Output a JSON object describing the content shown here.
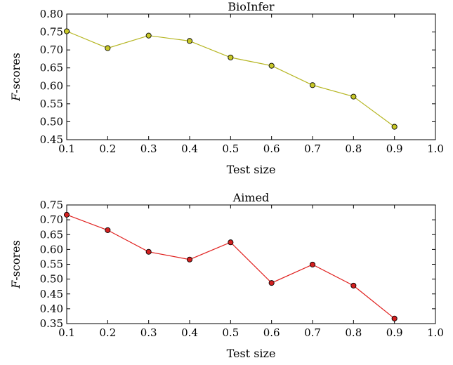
{
  "chart_data": [
    {
      "type": "line",
      "title": "BioInfer",
      "xlabel": "Test size",
      "ylabel_italic": "F",
      "ylabel_rest": "-scores",
      "x": [
        0.1,
        0.2,
        0.3,
        0.4,
        0.5,
        0.6,
        0.7,
        0.8,
        0.9
      ],
      "series": [
        {
          "values": [
            0.752,
            0.705,
            0.74,
            0.725,
            0.679,
            0.656,
            0.602,
            0.57,
            0.486
          ],
          "color": "#b5b520",
          "marker_color": "#c8c828"
        }
      ],
      "xlim": [
        0.1,
        1.0
      ],
      "ylim": [
        0.45,
        0.8
      ],
      "xticks": [
        "0.1",
        "0.2",
        "0.3",
        "0.4",
        "0.5",
        "0.6",
        "0.7",
        "0.8",
        "0.9",
        "1.0"
      ],
      "yticks": [
        "0.45",
        "0.50",
        "0.55",
        "0.60",
        "0.65",
        "0.70",
        "0.75",
        "0.80"
      ],
      "grid": false
    },
    {
      "type": "line",
      "title": "Aimed",
      "xlabel": "Test size",
      "ylabel_italic": "F",
      "ylabel_rest": "-scores",
      "x": [
        0.1,
        0.2,
        0.3,
        0.4,
        0.5,
        0.6,
        0.7,
        0.8,
        0.9
      ],
      "series": [
        {
          "values": [
            0.717,
            0.665,
            0.592,
            0.566,
            0.624,
            0.487,
            0.549,
            0.478,
            0.367
          ],
          "color": "#e0201e",
          "marker_color": "#d42020"
        }
      ],
      "xlim": [
        0.1,
        1.0
      ],
      "ylim": [
        0.35,
        0.75
      ],
      "xticks": [
        "0.1",
        "0.2",
        "0.3",
        "0.4",
        "0.5",
        "0.6",
        "0.7",
        "0.8",
        "0.9",
        "1.0"
      ],
      "yticks": [
        "0.35",
        "0.40",
        "0.45",
        "0.50",
        "0.55",
        "0.60",
        "0.65",
        "0.70",
        "0.75"
      ],
      "grid": false
    }
  ]
}
